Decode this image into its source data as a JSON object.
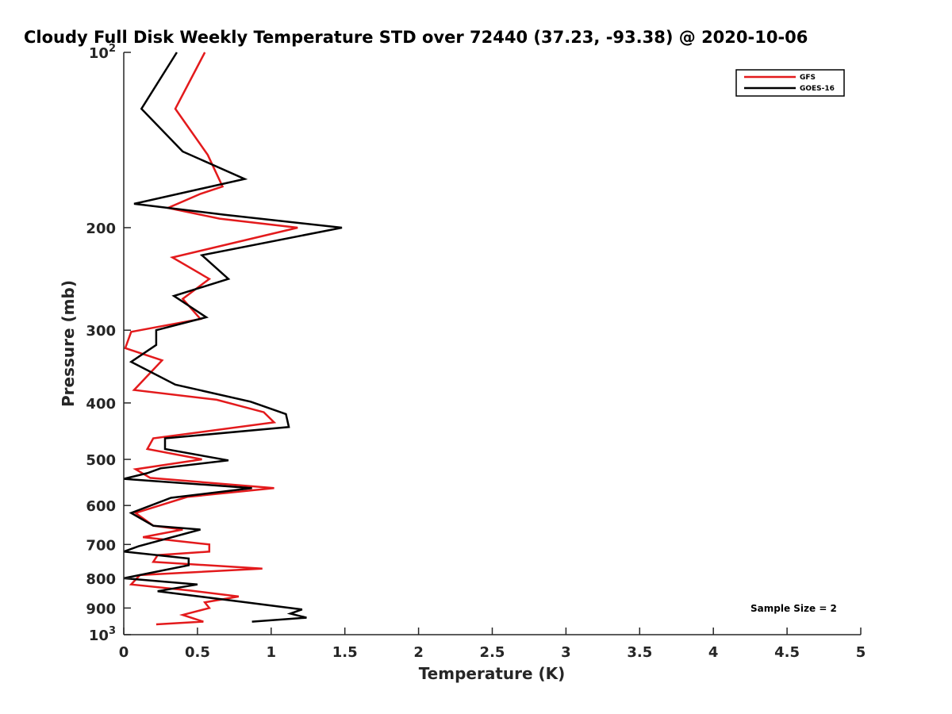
{
  "chart_data": {
    "type": "line",
    "title": "Cloudy Full Disk Weekly Temperature STD over 72440 (37.23, -93.38) @ 2020-10-06",
    "xlabel": "Temperature (K)",
    "ylabel": "Pressure (mb)",
    "xlim": [
      0,
      5
    ],
    "ylim": [
      100,
      1000
    ],
    "y_scale": "log",
    "y_reversed": true,
    "x_ticks": [
      "0",
      "0.5",
      "1",
      "1.5",
      "2",
      "2.5",
      "3",
      "3.5",
      "4",
      "4.5",
      "5"
    ],
    "y_ticks": [
      {
        "value": 100,
        "base": "10",
        "exp": "2"
      },
      {
        "value": 200,
        "label": "200"
      },
      {
        "value": 300,
        "label": "300"
      },
      {
        "value": 400,
        "label": "400"
      },
      {
        "value": 500,
        "label": "500"
      },
      {
        "value": 600,
        "label": "600"
      },
      {
        "value": 700,
        "label": "700"
      },
      {
        "value": 800,
        "label": "800"
      },
      {
        "value": 900,
        "label": "900"
      },
      {
        "value": 1000,
        "base": "10",
        "exp": "3"
      }
    ],
    "legend": {
      "position": "top-right",
      "entries": [
        "GFS",
        "GOES-16"
      ]
    },
    "annotation": "Sample Size = 2",
    "series": [
      {
        "name": "GFS",
        "color": "#e31a1c",
        "points": [
          [
            0.55,
            100
          ],
          [
            0.35,
            125
          ],
          [
            0.57,
            150
          ],
          [
            0.67,
            170
          ],
          [
            0.52,
            175
          ],
          [
            0.3,
            185
          ],
          [
            0.65,
            193
          ],
          [
            1.18,
            200
          ],
          [
            0.33,
            225
          ],
          [
            0.58,
            245
          ],
          [
            0.4,
            265
          ],
          [
            0.52,
            287
          ],
          [
            0.05,
            302
          ],
          [
            0.01,
            322
          ],
          [
            0.26,
            338
          ],
          [
            0.07,
            380
          ],
          [
            0.63,
            395
          ],
          [
            0.95,
            415
          ],
          [
            1.02,
            432
          ],
          [
            0.2,
            460
          ],
          [
            0.16,
            480
          ],
          [
            0.53,
            500
          ],
          [
            0.08,
            520
          ],
          [
            0.18,
            538
          ],
          [
            1.02,
            560
          ],
          [
            0.43,
            580
          ],
          [
            0.08,
            618
          ],
          [
            0.2,
            650
          ],
          [
            0.4,
            660
          ],
          [
            0.13,
            680
          ],
          [
            0.58,
            700
          ],
          [
            0.58,
            720
          ],
          [
            0.23,
            730
          ],
          [
            0.2,
            750
          ],
          [
            0.94,
            770
          ],
          [
            0.11,
            790
          ],
          [
            0.05,
            820
          ],
          [
            0.45,
            840
          ],
          [
            0.78,
            860
          ],
          [
            0.55,
            880
          ],
          [
            0.58,
            900
          ],
          [
            0.4,
            925
          ],
          [
            0.54,
            950
          ],
          [
            0.22,
            960
          ]
        ]
      },
      {
        "name": "GOES-16",
        "color": "#000000",
        "points": [
          [
            0.36,
            100
          ],
          [
            0.12,
            125
          ],
          [
            0.4,
            148
          ],
          [
            0.82,
            165
          ],
          [
            0.07,
            182
          ],
          [
            0.68,
            190
          ],
          [
            1.48,
            200
          ],
          [
            0.53,
            223
          ],
          [
            0.71,
            245
          ],
          [
            0.34,
            262
          ],
          [
            0.56,
            285
          ],
          [
            0.22,
            300
          ],
          [
            0.22,
            318
          ],
          [
            0.05,
            340
          ],
          [
            0.35,
            372
          ],
          [
            0.86,
            398
          ],
          [
            1.1,
            418
          ],
          [
            1.12,
            440
          ],
          [
            0.28,
            460
          ],
          [
            0.28,
            480
          ],
          [
            0.71,
            502
          ],
          [
            0.25,
            518
          ],
          [
            0.16,
            528
          ],
          [
            0.0,
            540
          ],
          [
            0.87,
            560
          ],
          [
            0.32,
            582
          ],
          [
            0.05,
            618
          ],
          [
            0.2,
            650
          ],
          [
            0.52,
            660
          ],
          [
            0.1,
            705
          ],
          [
            0.0,
            720
          ],
          [
            0.44,
            740
          ],
          [
            0.44,
            760
          ],
          [
            0.0,
            800
          ],
          [
            0.5,
            820
          ],
          [
            0.23,
            842
          ],
          [
            0.83,
            880
          ],
          [
            1.21,
            905
          ],
          [
            1.13,
            920
          ],
          [
            1.24,
            935
          ],
          [
            0.87,
            950
          ]
        ]
      }
    ]
  }
}
